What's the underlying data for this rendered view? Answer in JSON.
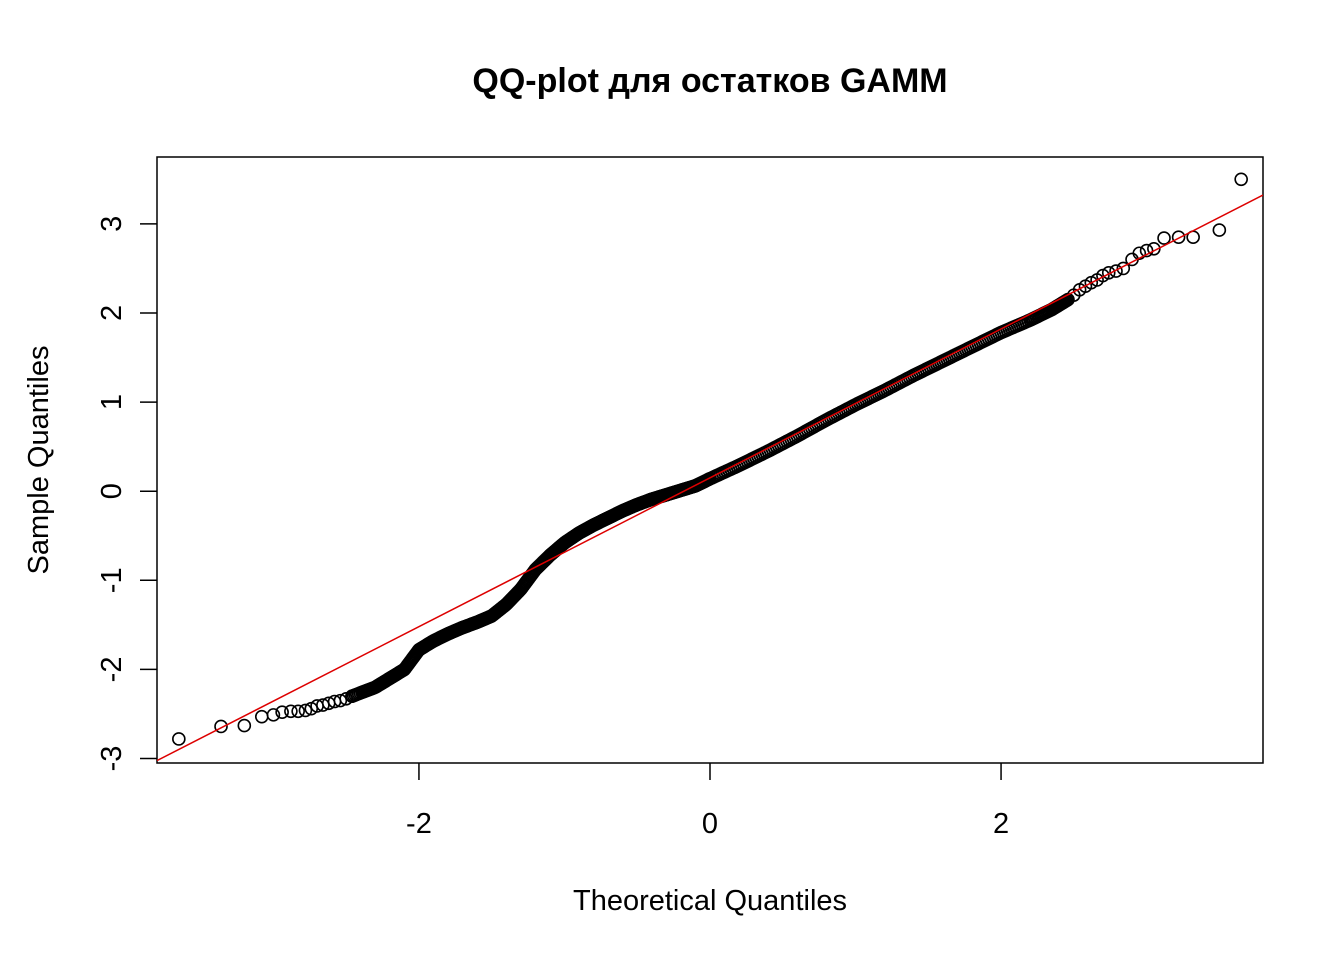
{
  "chart_data": {
    "type": "scatter",
    "title": "QQ-plot для остатков GAMM",
    "xlabel": "Theoretical Quantiles",
    "ylabel": "Sample Quantiles",
    "xlim": [
      -3.8,
      3.8
    ],
    "ylim": [
      -3.05,
      3.75
    ],
    "x_ticks": [
      -2,
      0,
      2
    ],
    "x_tick_labels": [
      "-2",
      "0",
      "2"
    ],
    "y_ticks": [
      -3,
      -2,
      -1,
      0,
      1,
      2,
      3
    ],
    "y_tick_labels": [
      "-3",
      "-2",
      "-1",
      "0",
      "1",
      "2",
      "3"
    ],
    "grid": false,
    "legend": "none",
    "colors": {
      "points": "#000000",
      "reference_line": "#dd0000"
    },
    "reference_line": {
      "slope": 0.835,
      "intercept": 0.15
    },
    "outlier_points": [
      {
        "x": -3.65,
        "y": -2.78
      },
      {
        "x": -3.36,
        "y": -2.64
      },
      {
        "x": -3.2,
        "y": -2.63
      },
      {
        "x": -3.08,
        "y": -2.53
      },
      {
        "x": -3.0,
        "y": -2.51
      },
      {
        "x": -2.94,
        "y": -2.48
      },
      {
        "x": -2.88,
        "y": -2.47
      },
      {
        "x": -2.83,
        "y": -2.47
      },
      {
        "x": -2.78,
        "y": -2.46
      },
      {
        "x": -2.74,
        "y": -2.44
      },
      {
        "x": -2.7,
        "y": -2.41
      },
      {
        "x": -2.66,
        "y": -2.4
      },
      {
        "x": -2.62,
        "y": -2.38
      },
      {
        "x": -2.58,
        "y": -2.36
      },
      {
        "x": -2.54,
        "y": -2.35
      },
      {
        "x": -2.5,
        "y": -2.33
      },
      {
        "x": -2.46,
        "y": -2.3
      },
      {
        "x": 2.46,
        "y": 2.15
      },
      {
        "x": 2.5,
        "y": 2.2
      },
      {
        "x": 2.54,
        "y": 2.26
      },
      {
        "x": 2.58,
        "y": 2.3
      },
      {
        "x": 2.62,
        "y": 2.34
      },
      {
        "x": 2.66,
        "y": 2.37
      },
      {
        "x": 2.7,
        "y": 2.42
      },
      {
        "x": 2.74,
        "y": 2.45
      },
      {
        "x": 2.79,
        "y": 2.47
      },
      {
        "x": 2.84,
        "y": 2.5
      },
      {
        "x": 2.9,
        "y": 2.6
      },
      {
        "x": 2.95,
        "y": 2.67
      },
      {
        "x": 3.0,
        "y": 2.7
      },
      {
        "x": 3.05,
        "y": 2.72
      },
      {
        "x": 3.12,
        "y": 2.84
      },
      {
        "x": 3.22,
        "y": 2.85
      },
      {
        "x": 3.32,
        "y": 2.85
      },
      {
        "x": 3.5,
        "y": 2.93
      },
      {
        "x": 3.65,
        "y": 3.5
      }
    ],
    "dense_curve": [
      {
        "x": -2.46,
        "y": -2.3
      },
      {
        "x": -2.3,
        "y": -2.2
      },
      {
        "x": -2.2,
        "y": -2.1
      },
      {
        "x": -2.1,
        "y": -2.0
      },
      {
        "x": -2.0,
        "y": -1.78
      },
      {
        "x": -1.9,
        "y": -1.68
      },
      {
        "x": -1.8,
        "y": -1.6
      },
      {
        "x": -1.7,
        "y": -1.53
      },
      {
        "x": -1.6,
        "y": -1.47
      },
      {
        "x": -1.5,
        "y": -1.4
      },
      {
        "x": -1.4,
        "y": -1.27
      },
      {
        "x": -1.3,
        "y": -1.1
      },
      {
        "x": -1.2,
        "y": -0.88
      },
      {
        "x": -1.1,
        "y": -0.72
      },
      {
        "x": -1.0,
        "y": -0.58
      },
      {
        "x": -0.9,
        "y": -0.47
      },
      {
        "x": -0.8,
        "y": -0.38
      },
      {
        "x": -0.7,
        "y": -0.3
      },
      {
        "x": -0.6,
        "y": -0.22
      },
      {
        "x": -0.5,
        "y": -0.15
      },
      {
        "x": -0.4,
        "y": -0.09
      },
      {
        "x": -0.3,
        "y": -0.04
      },
      {
        "x": -0.2,
        "y": 0.01
      },
      {
        "x": -0.1,
        "y": 0.06
      },
      {
        "x": 0.0,
        "y": 0.14
      },
      {
        "x": 0.2,
        "y": 0.29
      },
      {
        "x": 0.4,
        "y": 0.45
      },
      {
        "x": 0.6,
        "y": 0.62
      },
      {
        "x": 0.8,
        "y": 0.8
      },
      {
        "x": 1.0,
        "y": 0.97
      },
      {
        "x": 1.2,
        "y": 1.13
      },
      {
        "x": 1.4,
        "y": 1.3
      },
      {
        "x": 1.6,
        "y": 1.46
      },
      {
        "x": 1.8,
        "y": 1.62
      },
      {
        "x": 2.0,
        "y": 1.78
      },
      {
        "x": 2.2,
        "y": 1.92
      },
      {
        "x": 2.35,
        "y": 2.04
      },
      {
        "x": 2.46,
        "y": 2.15
      }
    ]
  }
}
